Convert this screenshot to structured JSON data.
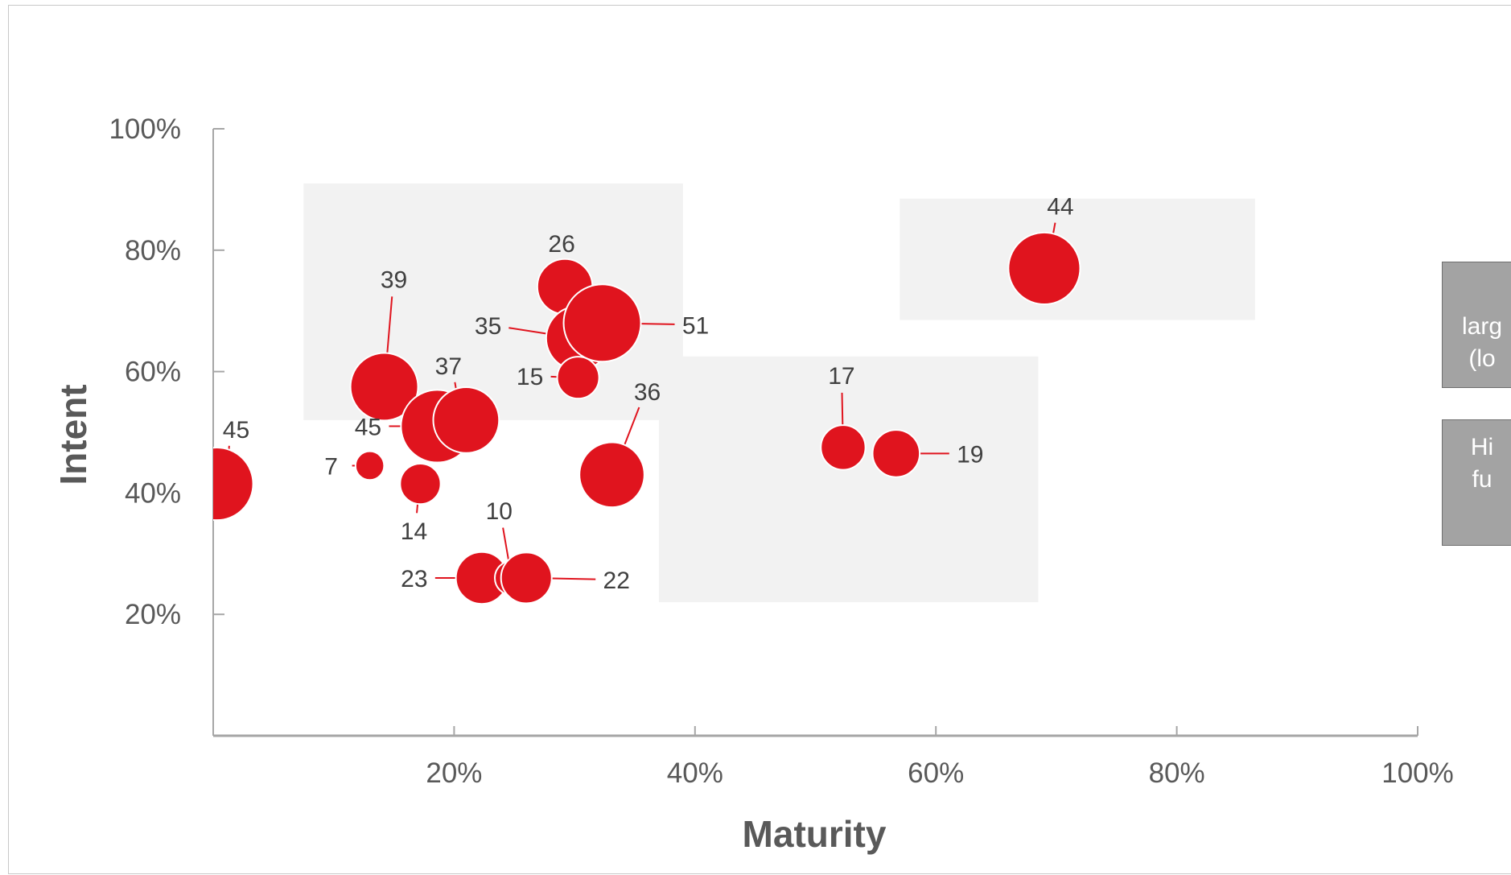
{
  "chart_data": {
    "type": "scatter",
    "subtype": "bubble",
    "xlabel": "Maturity",
    "ylabel": "Intent",
    "xlim": [
      0,
      100
    ],
    "ylim": [
      0,
      100
    ],
    "x_ticks": [
      "20%",
      "40%",
      "60%",
      "80%",
      "100%"
    ],
    "y_ticks": [
      "20%",
      "40%",
      "60%",
      "80%",
      "100%"
    ],
    "grid": false,
    "marker_color": "#e0141e",
    "highlight_zone_color": "#f2f2f2",
    "highlight_zones": [
      {
        "x": [
          7.5,
          39
        ],
        "y": [
          52,
          91
        ]
      },
      {
        "x": [
          37,
          68.5
        ],
        "y": [
          22,
          62.5
        ]
      },
      {
        "x": [
          57,
          86.5
        ],
        "y": [
          68.5,
          88.5
        ]
      }
    ],
    "points": [
      {
        "label": "45",
        "x": 0.3,
        "y": 41.5,
        "size": 45
      },
      {
        "label": "7",
        "x": 13,
        "y": 44.5,
        "size": 7
      },
      {
        "label": "39",
        "x": 14.2,
        "y": 57.5,
        "size": 39
      },
      {
        "label": "14",
        "x": 17.2,
        "y": 41.5,
        "size": 14
      },
      {
        "label": "45",
        "x": 18.6,
        "y": 51,
        "size": 45
      },
      {
        "label": "37",
        "x": 21,
        "y": 52,
        "size": 37
      },
      {
        "label": "23",
        "x": 22.3,
        "y": 26,
        "size": 23
      },
      {
        "label": "10",
        "x": 24.8,
        "y": 26,
        "size": 10
      },
      {
        "label": "22",
        "x": 26,
        "y": 26,
        "size": 22
      },
      {
        "label": "26",
        "x": 29.2,
        "y": 74,
        "size": 26
      },
      {
        "label": "35",
        "x": 30.3,
        "y": 65.5,
        "size": 35
      },
      {
        "label": "15",
        "x": 30.3,
        "y": 59,
        "size": 15
      },
      {
        "label": "51",
        "x": 32.3,
        "y": 68,
        "size": 51
      },
      {
        "label": "36",
        "x": 33.1,
        "y": 43,
        "size": 36
      },
      {
        "label": "17",
        "x": 52.3,
        "y": 47.5,
        "size": 17
      },
      {
        "label": "19",
        "x": 56.7,
        "y": 46.5,
        "size": 19
      },
      {
        "label": "44",
        "x": 69,
        "y": 77,
        "size": 44
      }
    ]
  },
  "side_boxes": [
    {
      "lines": [
        "larg",
        "(lo"
      ]
    },
    {
      "lines": [
        "Hi",
        "fu"
      ]
    }
  ]
}
